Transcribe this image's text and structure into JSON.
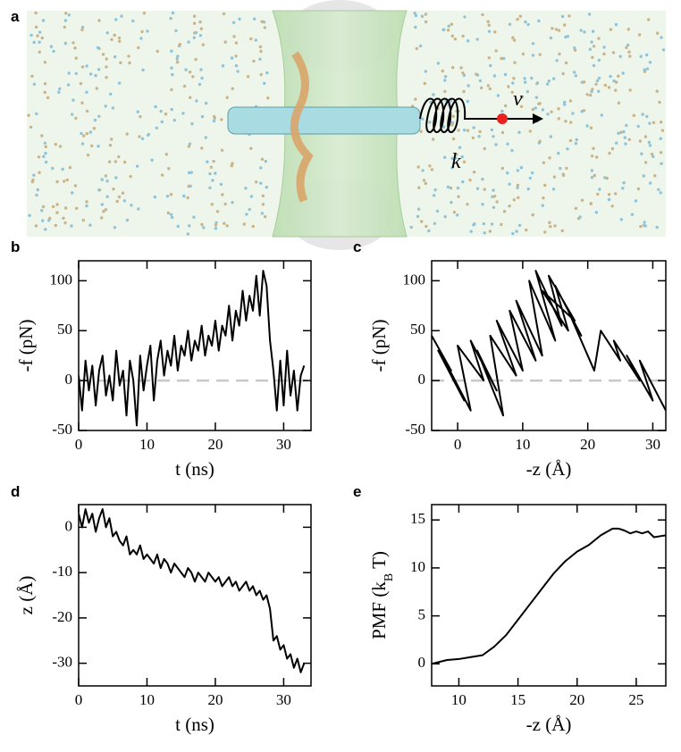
{
  "illustration": {
    "panel_label": "a",
    "labels": [
      "v",
      "k"
    ]
  },
  "chart_data": [
    {
      "type": "line",
      "panel_label": "b",
      "xlabel": "t (ns)",
      "ylabel": "-f (pN)",
      "xlim": [
        0,
        34
      ],
      "xticks": [
        0,
        10,
        20,
        30
      ],
      "ylim": [
        -50,
        120
      ],
      "yticks": [
        -50,
        0,
        50,
        100
      ],
      "hline": 0,
      "series": [
        {
          "color": "#000000",
          "x": [
            0,
            0.5,
            1,
            1.5,
            2,
            2.5,
            3,
            3.5,
            4,
            4.5,
            5,
            5.5,
            6,
            6.5,
            7,
            7.5,
            8,
            8.5,
            9,
            9.5,
            10,
            10.5,
            11,
            11.5,
            12,
            12.5,
            13,
            13.5,
            14,
            14.5,
            15,
            15.5,
            16,
            16.5,
            17,
            17.5,
            18,
            18.5,
            19,
            19.5,
            20,
            20.5,
            21,
            21.5,
            22,
            22.5,
            23,
            23.5,
            24,
            24.5,
            25,
            25.5,
            26,
            26.5,
            27,
            27.5,
            28,
            28.5,
            29,
            29.5,
            30,
            30.5,
            31,
            31.5,
            32,
            32.5,
            33
          ],
          "values": [
            5,
            -30,
            20,
            -10,
            15,
            -25,
            10,
            25,
            -15,
            5,
            -20,
            30,
            -5,
            10,
            -35,
            20,
            0,
            -45,
            25,
            -10,
            15,
            35,
            -20,
            20,
            40,
            5,
            30,
            15,
            45,
            10,
            35,
            25,
            50,
            20,
            40,
            30,
            55,
            25,
            45,
            35,
            60,
            30,
            55,
            45,
            75,
            40,
            70,
            55,
            90,
            60,
            85,
            70,
            105,
            65,
            110,
            95,
            40,
            10,
            -30,
            20,
            -25,
            30,
            -15,
            10,
            -30,
            5,
            15
          ]
        }
      ]
    },
    {
      "type": "line",
      "panel_label": "c",
      "xlabel": "-z (Å)",
      "ylabel": "-f (pN)",
      "xlim": [
        -4,
        32
      ],
      "xticks": [
        0,
        10,
        20,
        30
      ],
      "ylim": [
        -50,
        120
      ],
      "yticks": [
        -50,
        0,
        50,
        100
      ],
      "hline": 0,
      "series": [
        {
          "color": "#000000",
          "x": [
            -4,
            -1,
            -3,
            1,
            -2,
            2,
            0,
            4,
            2,
            6,
            3,
            7,
            5,
            9,
            6,
            10,
            8,
            12,
            9,
            13,
            11,
            15,
            12,
            16,
            14,
            18,
            13,
            17,
            15,
            19,
            17,
            21,
            22,
            25,
            24,
            28,
            26,
            30,
            28,
            32
          ],
          "values": [
            45,
            10,
            30,
            -20,
            20,
            -30,
            35,
            0,
            40,
            -10,
            30,
            -35,
            45,
            5,
            60,
            10,
            70,
            20,
            80,
            25,
            100,
            40,
            110,
            55,
            105,
            60,
            90,
            50,
            95,
            45,
            70,
            10,
            50,
            20,
            40,
            0,
            25,
            -20,
            20,
            -30
          ]
        }
      ]
    },
    {
      "type": "line",
      "panel_label": "d",
      "xlabel": "t (ns)",
      "ylabel": "z (Å)",
      "xlim": [
        0,
        34
      ],
      "xticks": [
        0,
        10,
        20,
        30
      ],
      "ylim": [
        -35,
        5
      ],
      "yticks": [
        -30,
        -20,
        -10,
        0
      ],
      "series": [
        {
          "color": "#000000",
          "x": [
            0,
            0.5,
            1,
            1.5,
            2,
            2.5,
            3,
            3.5,
            4,
            4.5,
            5,
            5.5,
            6,
            6.5,
            7,
            7.5,
            8,
            8.5,
            9,
            9.5,
            10,
            10.5,
            11,
            11.5,
            12,
            12.5,
            13,
            13.5,
            14,
            14.5,
            15,
            15.5,
            16,
            16.5,
            17,
            17.5,
            18,
            18.5,
            19,
            19.5,
            20,
            20.5,
            21,
            21.5,
            22,
            22.5,
            23,
            23.5,
            24,
            24.5,
            25,
            25.5,
            26,
            26.5,
            27,
            27.5,
            28,
            28.5,
            29,
            29.5,
            30,
            30.5,
            31,
            31.5,
            32,
            32.5,
            33
          ],
          "values": [
            3,
            0,
            4,
            1,
            3,
            -1,
            2,
            4,
            0,
            2,
            -2,
            -1,
            -3,
            -4,
            -2,
            -6,
            -5,
            -6,
            -4,
            -7,
            -6,
            -7,
            -8,
            -6,
            -9,
            -7,
            -8,
            -10,
            -8,
            -9,
            -10,
            -11,
            -9,
            -10,
            -12,
            -10,
            -11,
            -12,
            -10,
            -11,
            -12,
            -11,
            -13,
            -12,
            -11,
            -13,
            -12,
            -14,
            -13,
            -12,
            -14,
            -13,
            -15,
            -14,
            -16,
            -15,
            -18,
            -25,
            -24,
            -27,
            -26,
            -29,
            -28,
            -31,
            -29,
            -32,
            -30
          ]
        }
      ]
    },
    {
      "type": "line",
      "panel_label": "e",
      "xlabel": "-z (Å)",
      "ylabel": [
        "PMF (k",
        "B",
        " T)"
      ],
      "xlim": [
        7.7,
        27.5
      ],
      "xticks": [
        10,
        15,
        20,
        25
      ],
      "ylim": [
        -2.3,
        16.6
      ],
      "yticks": [
        0,
        5,
        10,
        15
      ],
      "series": [
        {
          "color": "#000000",
          "x": [
            7.7,
            9,
            10,
            11,
            12,
            13,
            14,
            15,
            16,
            17,
            18,
            19,
            20,
            21,
            22,
            23,
            23.5,
            24,
            24.5,
            25,
            25.5,
            26,
            26.5,
            27,
            27.5
          ],
          "values": [
            0,
            0.4,
            0.5,
            0.7,
            0.9,
            1.8,
            3,
            4.6,
            6.2,
            7.8,
            9.4,
            10.7,
            11.7,
            12.4,
            13.4,
            14.1,
            14.1,
            13.9,
            13.6,
            13.8,
            13.6,
            13.8,
            13.2,
            13.3,
            13.4
          ]
        }
      ]
    }
  ]
}
